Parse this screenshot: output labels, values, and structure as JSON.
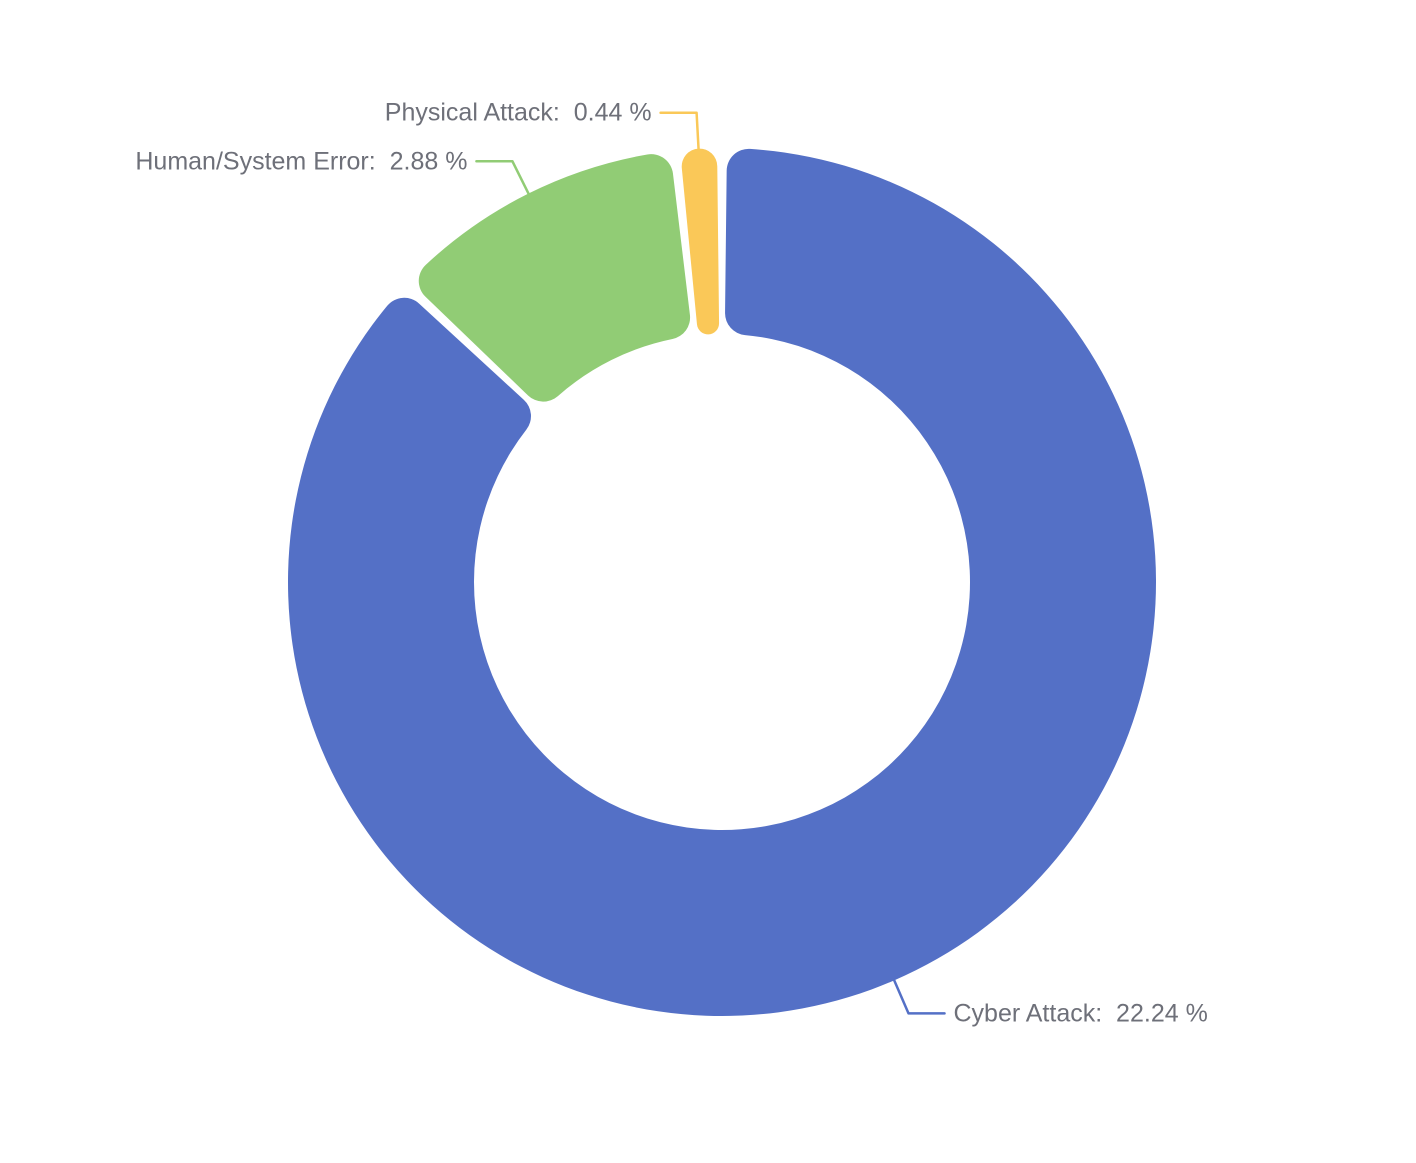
{
  "chart_data": {
    "type": "pie",
    "variant": "donut",
    "title": "",
    "legend": "none",
    "grid": false,
    "start_angle": "top",
    "direction": "clockwise",
    "unit": "%",
    "categories": [
      "Cyber Attack",
      "Human/System Error",
      "Physical Attack"
    ],
    "values": [
      22.24,
      2.88,
      0.44
    ],
    "series": [
      {
        "name": "Cyber Attack",
        "value": 22.24,
        "color": "#5470C6",
        "label": "Cyber Attack:  22.24 %"
      },
      {
        "name": "Human/System Error",
        "value": 2.88,
        "color": "#91CC75",
        "label": "Human/System Error:  2.88 %"
      },
      {
        "name": "Physical Attack",
        "value": 0.44,
        "color": "#FAC858",
        "label": "Physical Attack:  0.44 %"
      }
    ],
    "label_color": "#6E7079",
    "background_color": "#FFFFFF"
  }
}
